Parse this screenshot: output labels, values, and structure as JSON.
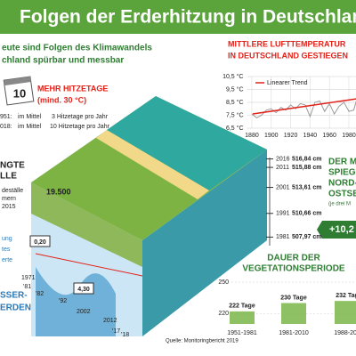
{
  "header": {
    "title": "Folgen der Erderhitzung in Deutschland",
    "subtitle": [
      "eute sind Folgen des Klimawandels",
      "chland spürbar und messbar"
    ]
  },
  "heat_days": {
    "calendar": "10",
    "title": "MEHR HITZETAGE",
    "subtitle": "(mind. 30 °C)",
    "lines": [
      [
        "951:",
        "im Mittel",
        "3 Hitzetage pro Jahr"
      ],
      [
        "018:",
        "im Mittel",
        "10 Hitzetage pro Jahr"
      ]
    ]
  },
  "temperature_title": [
    "MITTLERE LUFTTEMPERATUR",
    "IN DEUTSCHLAND GESTIEGEN"
  ],
  "sea_title": [
    "DER M",
    "SPIEGE",
    "NORD-",
    "OSTSE",
    "(je drei M"
  ],
  "sea_change": "+10,2",
  "left_box": {
    "title": [
      "NGTE",
      "LLE"
    ],
    "lines": [
      "deställe",
      "mern",
      "2015"
    ],
    "number": "19.500"
  },
  "groundwater": {
    "values": [
      "0,20",
      "4,30"
    ],
    "years": [
      "1971",
      "'81",
      "'82",
      "'92",
      "2002",
      "2012",
      "'17",
      "'18"
    ],
    "title": [
      "SSER-",
      "ERDEN"
    ],
    "notes": [
      "ung",
      "tes",
      "erte"
    ]
  },
  "vegetation_title": [
    "DAUER DER",
    "VEGETATIONSPERIODE"
  ],
  "source": "Quelle: Monitoringbericht 2019",
  "chart_data": [
    {
      "type": "line",
      "x": [
        1880,
        1885,
        1890,
        1895,
        1900,
        1905,
        1910,
        1915,
        1920,
        1925,
        1930,
        1935,
        1940,
        1945,
        1950,
        1955,
        1960,
        1965,
        1970,
        1975,
        1980,
        1985,
        1990,
        1995,
        2000,
        2005,
        2010,
        2015,
        2018
      ],
      "series": [
        {
          "color": "#9a9a9a",
          "values": [
            7.6,
            7.3,
            7.5,
            7.9,
            8.0,
            7.7,
            8.1,
            7.9,
            8.3,
            8.0,
            8.4,
            8.3,
            7.4,
            8.5,
            8.6,
            7.8,
            8.4,
            7.6,
            8.2,
            8.5,
            7.8,
            7.9,
            9.2,
            8.9,
            9.7,
            9.1,
            8.3,
            9.9,
            10.4
          ]
        }
      ],
      "trend": {
        "name": "Linearer Trend",
        "color": "#e2231a",
        "x": [
          1881,
          2018
        ],
        "values": [
          7.6,
          9.1
        ]
      },
      "xlim": [
        1875,
        2020
      ],
      "xticks": [
        1880,
        1900,
        1920,
        1940,
        1960,
        1980
      ],
      "ylim": [
        6.5,
        10.5
      ],
      "yticks": [
        {
          "value": 10.5,
          "label": "10,5 °C"
        },
        {
          "value": 9.5,
          "label": "9,5 °C"
        },
        {
          "value": 8.5,
          "label": "8,5 °C"
        },
        {
          "value": 7.5,
          "label": "7,5 °C"
        },
        {
          "value": 6.5,
          "label": "6,5 °C"
        }
      ],
      "grid": true
    },
    {
      "type": "scale",
      "categories": [
        "2016",
        "2011",
        "2001",
        "1991",
        "1981"
      ],
      "values": [
        516.84,
        515.88,
        513.61,
        510.66,
        507.97
      ],
      "value_labels": [
        "516,84 cm",
        "515,88 cm",
        "513,61 cm",
        "510,66 cm",
        "507,97 cm"
      ],
      "ylim": [
        507,
        517
      ],
      "color": "#333333"
    },
    {
      "type": "bar",
      "categories": [
        "1951-1981",
        "1981-2010",
        "1988-201"
      ],
      "values": [
        222,
        230,
        232
      ],
      "value_labels": [
        "222 Tage",
        "230 Tage",
        "232 Tag"
      ],
      "ylim": [
        210,
        250
      ],
      "yticks": [
        250,
        220
      ],
      "color": "#7ab648"
    }
  ]
}
